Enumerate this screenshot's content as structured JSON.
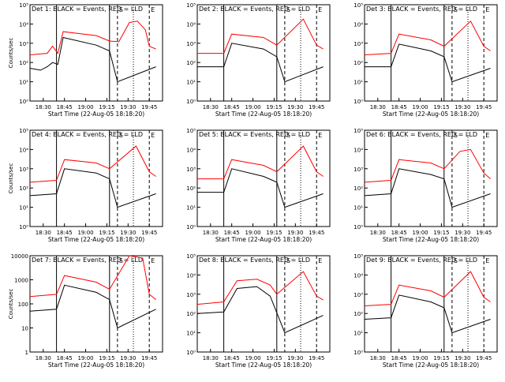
{
  "figure": {
    "start_time_label": "Start Time (22-Aug-05 18:18:20)"
  },
  "chart_data": [
    {
      "type": "line",
      "title": "Det 1: BLACK = Events, RED = LLD",
      "ylabel": "Counts/sec",
      "xlabel": "Start Time (22-Aug-05 18:18:20)",
      "yscale": "log",
      "ylim": [
        1,
        100000
      ],
      "ytick_labels": [
        "10⁰",
        "10¹",
        "10²",
        "10³",
        "10⁴",
        "10⁵"
      ],
      "xtick_labels": [
        "18:30",
        "18:45",
        "19:00",
        "19:15",
        "19:30",
        "19:45"
      ],
      "markers": [
        "S",
        "E"
      ],
      "series": [
        {
          "color": "#ff0000",
          "values": [
            [
              0,
              250
            ],
            [
              0.08,
              280
            ],
            [
              0.13,
              300
            ],
            [
              0.17,
              700
            ],
            [
              0.21,
              300
            ],
            [
              0.25,
              4000
            ],
            [
              0.5,
              2500
            ],
            [
              0.6,
              1300
            ],
            [
              0.67,
              1200
            ],
            [
              0.75,
              12000
            ],
            [
              0.81,
              14000
            ],
            [
              0.87,
              5000
            ],
            [
              0.9,
              700
            ],
            [
              0.95,
              500
            ]
          ]
        },
        {
          "color": "#000000",
          "values": [
            [
              0,
              50
            ],
            [
              0.08,
              40
            ],
            [
              0.13,
              60
            ],
            [
              0.17,
              100
            ],
            [
              0.21,
              80
            ],
            [
              0.25,
              2000
            ],
            [
              0.5,
              800
            ],
            [
              0.6,
              400
            ],
            [
              0.66,
              10
            ],
            [
              0.95,
              60
            ]
          ]
        }
      ]
    },
    {
      "type": "line",
      "title": "Det 2: BLACK = Events, RED = LLD",
      "ylabel": "",
      "xlabel": "Start Time (22-Aug-05 18:18:20)",
      "yscale": "log",
      "ylim": [
        1,
        100000
      ],
      "ytick_labels": [
        "10⁰",
        "10¹",
        "10²",
        "10³",
        "10⁴",
        "10⁵"
      ],
      "xtick_labels": [
        "18:30",
        "18:45",
        "19:00",
        "19:15",
        "19:30",
        "19:45"
      ],
      "markers": [
        "S",
        "E"
      ],
      "series": [
        {
          "color": "#ff0000",
          "values": [
            [
              0,
              300
            ],
            [
              0.2,
              300
            ],
            [
              0.26,
              3000
            ],
            [
              0.5,
              2000
            ],
            [
              0.6,
              800
            ],
            [
              0.8,
              18000
            ],
            [
              0.9,
              800
            ],
            [
              0.95,
              500
            ]
          ]
        },
        {
          "color": "#000000",
          "values": [
            [
              0,
              60
            ],
            [
              0.2,
              60
            ],
            [
              0.26,
              1000
            ],
            [
              0.5,
              500
            ],
            [
              0.6,
              200
            ],
            [
              0.66,
              10
            ],
            [
              0.95,
              60
            ]
          ]
        }
      ]
    },
    {
      "type": "line",
      "title": "Det 3: BLACK = Events, RED = LLD",
      "ylabel": "",
      "xlabel": "Start Time (22-Aug-05 18:18:20)",
      "yscale": "log",
      "ylim": [
        1,
        100000
      ],
      "ytick_labels": [
        "10⁰",
        "10¹",
        "10²",
        "10³",
        "10⁴",
        "10⁵"
      ],
      "xtick_labels": [
        "18:30",
        "18:45",
        "19:00",
        "19:15",
        "19:30",
        "19:45"
      ],
      "markers": [
        "S",
        "E"
      ],
      "series": [
        {
          "color": "#ff0000",
          "values": [
            [
              0,
              250
            ],
            [
              0.2,
              300
            ],
            [
              0.26,
              3000
            ],
            [
              0.5,
              1500
            ],
            [
              0.6,
              700
            ],
            [
              0.8,
              14000
            ],
            [
              0.9,
              700
            ],
            [
              0.95,
              400
            ]
          ]
        },
        {
          "color": "#000000",
          "values": [
            [
              0,
              60
            ],
            [
              0.2,
              60
            ],
            [
              0.26,
              900
            ],
            [
              0.5,
              400
            ],
            [
              0.6,
              200
            ],
            [
              0.66,
              10
            ],
            [
              0.95,
              50
            ]
          ]
        }
      ]
    },
    {
      "type": "line",
      "title": "Det 4: BLACK = Events, RED = LLD",
      "ylabel": "Counts/sec",
      "xlabel": "Start Time (22-Aug-05 18:18:20)",
      "yscale": "log",
      "ylim": [
        1,
        100000
      ],
      "ytick_labels": [
        "10⁰",
        "10¹",
        "10²",
        "10³",
        "10⁴",
        "10⁵"
      ],
      "xtick_labels": [
        "18:30",
        "18:45",
        "19:00",
        "19:15",
        "19:30",
        "19:45"
      ],
      "markers": [
        "S",
        "E"
      ],
      "series": [
        {
          "color": "#ff0000",
          "values": [
            [
              0,
              200
            ],
            [
              0.2,
              250
            ],
            [
              0.26,
              3000
            ],
            [
              0.5,
              2000
            ],
            [
              0.6,
              1000
            ],
            [
              0.8,
              15000
            ],
            [
              0.9,
              700
            ],
            [
              0.95,
              400
            ]
          ]
        },
        {
          "color": "#000000",
          "values": [
            [
              0,
              40
            ],
            [
              0.2,
              50
            ],
            [
              0.26,
              1000
            ],
            [
              0.5,
              600
            ],
            [
              0.6,
              300
            ],
            [
              0.66,
              10
            ],
            [
              0.95,
              50
            ]
          ]
        }
      ]
    },
    {
      "type": "line",
      "title": "Det 5: BLACK = Events, RED = LLD",
      "ylabel": "",
      "xlabel": "Start Time (22-Aug-05 18:18:20)",
      "yscale": "log",
      "ylim": [
        1,
        100000
      ],
      "ytick_labels": [
        "10⁰",
        "10¹",
        "10²",
        "10³",
        "10⁴",
        "10⁵"
      ],
      "xtick_labels": [
        "18:30",
        "18:45",
        "19:00",
        "19:15",
        "19:30",
        "19:45"
      ],
      "markers": [
        "S",
        "E"
      ],
      "series": [
        {
          "color": "#ff0000",
          "values": [
            [
              0,
              300
            ],
            [
              0.2,
              300
            ],
            [
              0.26,
              3000
            ],
            [
              0.5,
              1500
            ],
            [
              0.6,
              700
            ],
            [
              0.8,
              15000
            ],
            [
              0.9,
              700
            ],
            [
              0.95,
              400
            ]
          ]
        },
        {
          "color": "#000000",
          "values": [
            [
              0,
              60
            ],
            [
              0.2,
              60
            ],
            [
              0.26,
              1000
            ],
            [
              0.5,
              400
            ],
            [
              0.6,
              200
            ],
            [
              0.66,
              10
            ],
            [
              0.95,
              50
            ]
          ]
        }
      ]
    },
    {
      "type": "line",
      "title": "Det 6: BLACK = Events, RED = LLD",
      "ylabel": "",
      "xlabel": "Start Time (22-Aug-05 18:18:20)",
      "yscale": "log",
      "ylim": [
        1,
        100000
      ],
      "ytick_labels": [
        "10⁰",
        "10¹",
        "10²",
        "10³",
        "10⁴",
        "10⁵"
      ],
      "xtick_labels": [
        "18:30",
        "18:45",
        "19:00",
        "19:15",
        "19:30",
        "19:45"
      ],
      "markers": [
        "S",
        "E"
      ],
      "series": [
        {
          "color": "#ff0000",
          "values": [
            [
              0,
              200
            ],
            [
              0.2,
              250
            ],
            [
              0.26,
              3000
            ],
            [
              0.5,
              2000
            ],
            [
              0.6,
              1000
            ],
            [
              0.72,
              8000
            ],
            [
              0.8,
              10000
            ],
            [
              0.9,
              600
            ],
            [
              0.95,
              300
            ]
          ]
        },
        {
          "color": "#000000",
          "values": [
            [
              0,
              40
            ],
            [
              0.2,
              50
            ],
            [
              0.26,
              1000
            ],
            [
              0.5,
              500
            ],
            [
              0.6,
              300
            ],
            [
              0.66,
              10
            ],
            [
              0.95,
              50
            ]
          ]
        }
      ]
    },
    {
      "type": "line",
      "title": "Det 7: BLACK = Events, RED = LLD",
      "ylabel": "Counts/sec",
      "xlabel": "Start Time (22-Aug-05 18:18:20)",
      "yscale": "log",
      "ylim": [
        1,
        10000
      ],
      "ytick_labels": [
        "1",
        "10",
        "100",
        "1000",
        "10000"
      ],
      "xtick_labels": [
        "18:30",
        "18:45",
        "19:00",
        "19:15",
        "19:30",
        "19:45"
      ],
      "markers": [
        "S",
        "E"
      ],
      "series": [
        {
          "color": "#ff0000",
          "values": [
            [
              0,
              200
            ],
            [
              0.2,
              250
            ],
            [
              0.26,
              1500
            ],
            [
              0.5,
              800
            ],
            [
              0.6,
              400
            ],
            [
              0.75,
              10000
            ],
            [
              0.85,
              8000
            ],
            [
              0.9,
              250
            ],
            [
              0.95,
              150
            ]
          ]
        },
        {
          "color": "#000000",
          "values": [
            [
              0,
              50
            ],
            [
              0.2,
              60
            ],
            [
              0.26,
              600
            ],
            [
              0.5,
              300
            ],
            [
              0.6,
              150
            ],
            [
              0.66,
              10
            ],
            [
              0.95,
              60
            ]
          ]
        }
      ]
    },
    {
      "type": "line",
      "title": "Det 8: BLACK = Events, RED = LLD",
      "ylabel": "",
      "xlabel": "Start Time (22-Aug-05 18:18:20)",
      "yscale": "log",
      "ylim": [
        1,
        100000
      ],
      "ytick_labels": [
        "10⁰",
        "10¹",
        "10²",
        "10³",
        "10⁴",
        "10⁵"
      ],
      "xtick_labels": [
        "18:30",
        "18:45",
        "19:00",
        "19:15",
        "19:30",
        "19:45"
      ],
      "markers": [
        "S",
        "E"
      ],
      "series": [
        {
          "color": "#ff0000",
          "values": [
            [
              0,
              300
            ],
            [
              0.2,
              400
            ],
            [
              0.3,
              5000
            ],
            [
              0.45,
              6000
            ],
            [
              0.55,
              3000
            ],
            [
              0.6,
              1000
            ],
            [
              0.8,
              15000
            ],
            [
              0.9,
              800
            ],
            [
              0.95,
              500
            ]
          ]
        },
        {
          "color": "#000000",
          "values": [
            [
              0,
              100
            ],
            [
              0.2,
              120
            ],
            [
              0.3,
              2000
            ],
            [
              0.45,
              2500
            ],
            [
              0.55,
              800
            ],
            [
              0.66,
              10
            ],
            [
              0.95,
              80
            ]
          ]
        }
      ]
    },
    {
      "type": "line",
      "title": "Det 9: BLACK = Events, RED = LLD",
      "ylabel": "",
      "xlabel": "Start Time (22-Aug-05 18:18:20)",
      "yscale": "log",
      "ylim": [
        1,
        100000
      ],
      "ytick_labels": [
        "10⁰",
        "10¹",
        "10²",
        "10³",
        "10⁴",
        "10⁵"
      ],
      "xtick_labels": [
        "18:30",
        "18:45",
        "19:00",
        "19:15",
        "19:30",
        "19:45"
      ],
      "markers": [
        "S",
        "E"
      ],
      "series": [
        {
          "color": "#ff0000",
          "values": [
            [
              0,
              250
            ],
            [
              0.2,
              300
            ],
            [
              0.26,
              3000
            ],
            [
              0.5,
              1500
            ],
            [
              0.6,
              700
            ],
            [
              0.8,
              15000
            ],
            [
              0.9,
              700
            ],
            [
              0.95,
              400
            ]
          ]
        },
        {
          "color": "#000000",
          "values": [
            [
              0,
              50
            ],
            [
              0.2,
              60
            ],
            [
              0.26,
              900
            ],
            [
              0.5,
              400
            ],
            [
              0.6,
              200
            ],
            [
              0.66,
              10
            ],
            [
              0.95,
              50
            ]
          ]
        }
      ]
    }
  ]
}
